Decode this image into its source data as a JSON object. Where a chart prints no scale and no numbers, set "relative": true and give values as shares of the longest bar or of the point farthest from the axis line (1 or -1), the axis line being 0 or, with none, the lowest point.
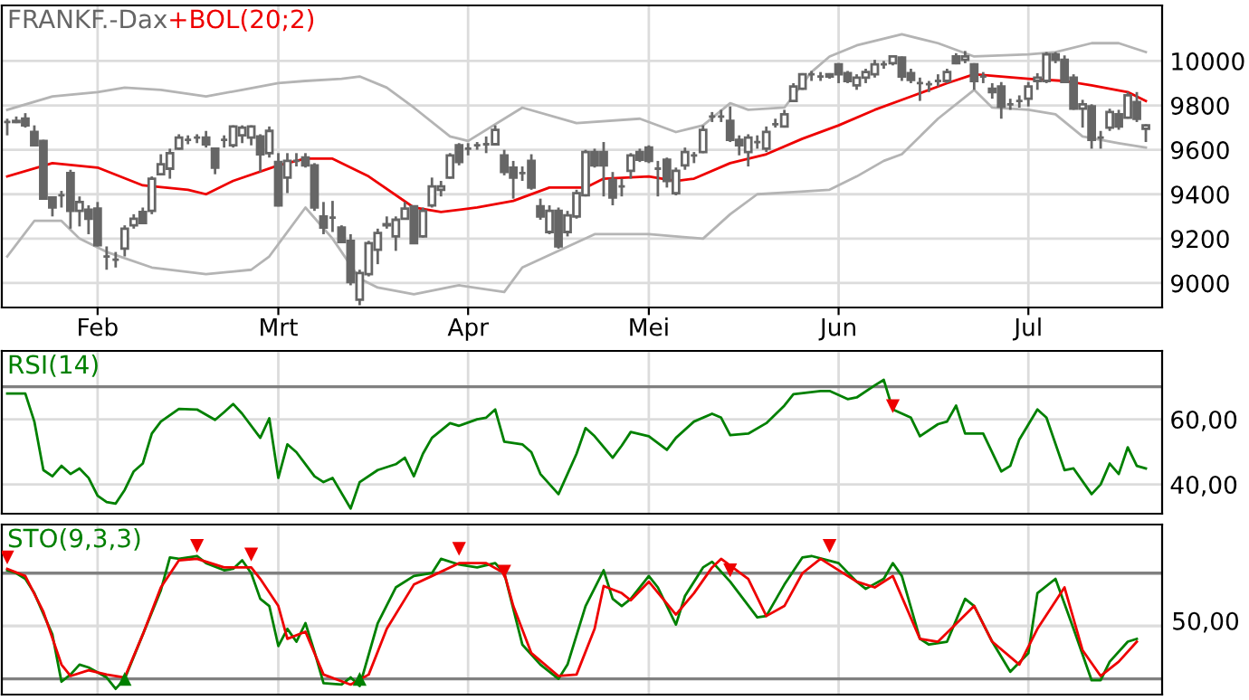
{
  "chart_data": [
    {
      "type": "candlestick",
      "title": "FRANKF.-Dax",
      "color": "#666666",
      "grid": true,
      "legend": false,
      "categories": [
        null,
        null,
        null,
        null,
        null,
        null,
        null,
        null,
        null,
        null,
        "Feb",
        null,
        null,
        null,
        null,
        null,
        null,
        null,
        null,
        null,
        null,
        null,
        null,
        null,
        null,
        null,
        null,
        null,
        null,
        null,
        "Mrt",
        null,
        null,
        null,
        null,
        null,
        null,
        null,
        null,
        null,
        null,
        null,
        null,
        null,
        null,
        null,
        null,
        null,
        null,
        null,
        null,
        "Apr",
        null,
        null,
        null,
        null,
        null,
        null,
        null,
        null,
        null,
        null,
        null,
        null,
        null,
        null,
        null,
        null,
        null,
        null,
        null,
        "Mei",
        null,
        null,
        null,
        null,
        null,
        null,
        null,
        null,
        null,
        null,
        null,
        null,
        null,
        null,
        null,
        null,
        null,
        null,
        null,
        null,
        "Jun",
        null,
        null,
        null,
        null,
        null,
        null,
        null,
        null,
        null,
        null,
        null,
        null,
        null,
        null,
        null,
        null,
        null,
        null,
        null,
        null,
        "Jul",
        null,
        null,
        null,
        null,
        null,
        null,
        null,
        null,
        null,
        null,
        null,
        null,
        null
      ],
      "ohlc": [
        [
          9725,
          9740,
          9665,
          9725
        ],
        [
          9730,
          9750,
          9720,
          9725
        ],
        [
          9740,
          9765,
          9700,
          9710
        ],
        [
          9680,
          9710,
          9615,
          9620
        ],
        [
          9640,
          9645,
          9375,
          9380
        ],
        [
          9385,
          9385,
          9300,
          9340
        ],
        [
          9395,
          9415,
          9340,
          9395
        ],
        [
          9495,
          9510,
          9245,
          9325
        ],
        [
          9325,
          9390,
          9255,
          9365
        ],
        [
          9330,
          9350,
          9220,
          9290
        ],
        [
          9335,
          9365,
          9165,
          9170
        ],
        [
          9120,
          9165,
          9060,
          9120
        ],
        [
          9105,
          9140,
          9070,
          9105
        ],
        [
          9155,
          9260,
          9120,
          9245
        ],
        [
          9260,
          9310,
          9245,
          9290
        ],
        [
          9320,
          9340,
          9265,
          9270
        ],
        [
          9325,
          9480,
          9310,
          9470
        ],
        [
          9490,
          9580,
          9485,
          9535
        ],
        [
          9515,
          9605,
          9470,
          9585
        ],
        [
          9605,
          9670,
          9600,
          9655
        ],
        [
          9645,
          9665,
          9625,
          9645
        ],
        [
          9655,
          9670,
          9630,
          9655
        ],
        [
          9655,
          9685,
          9610,
          9625
        ],
        [
          9605,
          9610,
          9490,
          9520
        ],
        [
          9645,
          9665,
          9610,
          9645
        ],
        [
          9620,
          9710,
          9610,
          9705
        ],
        [
          9665,
          9710,
          9630,
          9700
        ],
        [
          9655,
          9710,
          9620,
          9705
        ],
        [
          9660,
          9670,
          9500,
          9580
        ],
        [
          9585,
          9705,
          9565,
          9685
        ],
        [
          9545,
          9585,
          9345,
          9350
        ],
        [
          9475,
          9585,
          9405,
          9550
        ],
        [
          9550,
          9585,
          9525,
          9550
        ],
        [
          9565,
          9585,
          9520,
          9530
        ],
        [
          9530,
          9540,
          9325,
          9340
        ],
        [
          9300,
          9365,
          9220,
          9250
        ],
        [
          9295,
          9370,
          9230,
          9295
        ],
        [
          9250,
          9260,
          9180,
          9185
        ],
        [
          9190,
          9220,
          8990,
          9005
        ],
        [
          8925,
          9060,
          8900,
          9045
        ],
        [
          9040,
          9190,
          9030,
          9180
        ],
        [
          9150,
          9245,
          9085,
          9225
        ],
        [
          9260,
          9300,
          9245,
          9265
        ],
        [
          9210,
          9300,
          9145,
          9285
        ],
        [
          9290,
          9365,
          9285,
          9335
        ],
        [
          9345,
          9350,
          9175,
          9180
        ],
        [
          9210,
          9340,
          9205,
          9325
        ],
        [
          9350,
          9475,
          9340,
          9435
        ],
        [
          9420,
          9460,
          9390,
          9435
        ],
        [
          9475,
          9585,
          9470,
          9575
        ],
        [
          9620,
          9630,
          9530,
          9545
        ],
        [
          9605,
          9630,
          9575,
          9605
        ],
        [
          9620,
          9635,
          9600,
          9620
        ],
        [
          9625,
          9660,
          9585,
          9625
        ],
        [
          9625,
          9710,
          9620,
          9690
        ],
        [
          9575,
          9600,
          9485,
          9500
        ],
        [
          9520,
          9550,
          9380,
          9475
        ],
        [
          9495,
          9525,
          9460,
          9495
        ],
        [
          9550,
          9580,
          9420,
          9430
        ],
        [
          9345,
          9380,
          9285,
          9300
        ],
        [
          9230,
          9350,
          9220,
          9325
        ],
        [
          9325,
          9340,
          9155,
          9165
        ],
        [
          9230,
          9325,
          9210,
          9305
        ],
        [
          9300,
          9420,
          9290,
          9405
        ],
        [
          9395,
          9600,
          9390,
          9590
        ],
        [
          9590,
          9605,
          9520,
          9530
        ],
        [
          9590,
          9635,
          9390,
          9530
        ],
        [
          9465,
          9500,
          9350,
          9385
        ],
        [
          9435,
          9470,
          9390,
          9435
        ],
        [
          9505,
          9585,
          9470,
          9575
        ],
        [
          9590,
          9605,
          9545,
          9555
        ],
        [
          9610,
          9620,
          9540,
          9550
        ],
        [
          9515,
          9550,
          9390,
          9515
        ],
        [
          9555,
          9565,
          9430,
          9460
        ],
        [
          9405,
          9520,
          9395,
          9505
        ],
        [
          9530,
          9610,
          9510,
          9590
        ],
        [
          9575,
          9590,
          9540,
          9575
        ],
        [
          9590,
          9710,
          9585,
          9690
        ],
        [
          9750,
          9770,
          9725,
          9750
        ],
        [
          9750,
          9780,
          9725,
          9750
        ],
        [
          9730,
          9795,
          9635,
          9645
        ],
        [
          9645,
          9665,
          9575,
          9620
        ],
        [
          9590,
          9670,
          9525,
          9655
        ],
        [
          9635,
          9665,
          9605,
          9635
        ],
        [
          9605,
          9705,
          9590,
          9680
        ],
        [
          9715,
          9740,
          9700,
          9715
        ],
        [
          9705,
          9780,
          9700,
          9760
        ],
        [
          9820,
          9900,
          9815,
          9885
        ],
        [
          9875,
          9945,
          9870,
          9940
        ],
        [
          9940,
          9955,
          9910,
          9940
        ],
        [
          9930,
          9950,
          9910,
          9930
        ],
        [
          9930,
          9945,
          9920,
          9940
        ],
        [
          9985,
          9990,
          9900,
          9940
        ],
        [
          9945,
          9955,
          9900,
          9910
        ],
        [
          9890,
          9940,
          9870,
          9925
        ],
        [
          9925,
          9965,
          9900,
          9950
        ],
        [
          9940,
          10005,
          9925,
          9985
        ],
        [
          9985,
          10000,
          9965,
          9985
        ],
        [
          9990,
          10025,
          9980,
          10020
        ],
        [
          10015,
          10020,
          9910,
          9930
        ],
        [
          9945,
          9965,
          9900,
          9915
        ],
        [
          9900,
          9925,
          9820,
          9900
        ],
        [
          9895,
          9910,
          9860,
          9895
        ],
        [
          9910,
          9940,
          9885,
          9910
        ],
        [
          9910,
          9965,
          9900,
          9950
        ],
        [
          10020,
          10035,
          9985,
          9990
        ],
        [
          10005,
          10045,
          9990,
          10020
        ],
        [
          9985,
          9990,
          9870,
          9910
        ],
        [
          9930,
          9950,
          9900,
          9930
        ],
        [
          9875,
          9900,
          9830,
          9860
        ],
        [
          9885,
          9905,
          9740,
          9795
        ],
        [
          9805,
          9830,
          9780,
          9805
        ],
        [
          9820,
          9845,
          9790,
          9820
        ],
        [
          9830,
          9905,
          9795,
          9885
        ],
        [
          9910,
          9945,
          9870,
          9925
        ],
        [
          9910,
          10040,
          9900,
          10030
        ],
        [
          10030,
          10040,
          9990,
          10005
        ],
        [
          10005,
          10025,
          9900,
          9905
        ],
        [
          9925,
          9940,
          9780,
          9785
        ],
        [
          9785,
          9825,
          9700,
          9805
        ],
        [
          9795,
          9805,
          9605,
          9645
        ],
        [
          9655,
          9685,
          9605,
          9655
        ],
        [
          9700,
          9785,
          9685,
          9770
        ],
        [
          9760,
          9780,
          9690,
          9705
        ],
        [
          9745,
          9860,
          9740,
          9845
        ],
        [
          9815,
          9860,
          9725,
          9740
        ],
        [
          9695,
          9715,
          9635,
          9710
        ]
      ],
      "series": [
        {
          "type": "line",
          "color": "#b4b4b4",
          "values": [
            9780,
            null,
            null,
            null,
            null,
            9840,
            null,
            null,
            null,
            null,
            9860,
            null,
            null,
            9880,
            null,
            null,
            null,
            9870,
            null,
            null,
            null,
            null,
            9840,
            null,
            null,
            null,
            9870,
            null,
            null,
            null,
            9900,
            null,
            null,
            9910,
            null,
            null,
            null,
            9920,
            null,
            9930,
            null,
            null,
            9880,
            null,
            null,
            9790,
            null,
            null,
            null,
            9660,
            null,
            9640,
            null,
            null,
            null,
            null,
            null,
            9790,
            null,
            null,
            null,
            null,
            null,
            9720,
            null,
            null,
            null,
            null,
            null,
            null,
            9740,
            null,
            null,
            null,
            9680,
            null,
            null,
            9710,
            null,
            null,
            9810,
            null,
            9780,
            null,
            null,
            null,
            9790,
            null,
            null,
            9950,
            null,
            10020,
            null,
            null,
            10070,
            null,
            null,
            null,
            null,
            10120,
            null,
            null,
            null,
            10080,
            null,
            null,
            null,
            10020,
            null,
            null,
            null,
            null,
            null,
            10030,
            null,
            null,
            10040,
            null,
            null,
            null,
            10080,
            null,
            null,
            10080,
            null,
            null,
            10040
          ]
        },
        {
          "type": "line",
          "name": "+BOL(20;2)",
          "color": "#ee0000",
          "values": [
            9480,
            null,
            null,
            null,
            null,
            9540,
            null,
            null,
            null,
            null,
            9520,
            null,
            null,
            null,
            null,
            9440,
            null,
            null,
            null,
            null,
            9420,
            null,
            9400,
            null,
            null,
            9460,
            null,
            null,
            null,
            null,
            9530,
            null,
            null,
            9560,
            null,
            null,
            9560,
            null,
            null,
            null,
            9480,
            null,
            null,
            null,
            null,
            9340,
            null,
            null,
            9320,
            null,
            null,
            null,
            9340,
            null,
            null,
            null,
            9370,
            null,
            null,
            null,
            9430,
            null,
            null,
            null,
            9430,
            null,
            9470,
            null,
            null,
            null,
            null,
            9480,
            null,
            null,
            9460,
            null,
            9470,
            null,
            null,
            null,
            9540,
            null,
            null,
            null,
            9580,
            null,
            null,
            null,
            9650,
            null,
            null,
            null,
            9710,
            null,
            null,
            null,
            9780,
            null,
            null,
            null,
            9840,
            null,
            null,
            null,
            9900,
            null,
            null,
            9940,
            null,
            null,
            9930,
            null,
            null,
            9920,
            null,
            null,
            null,
            9910,
            null,
            null,
            9890,
            null,
            null,
            null,
            9860,
            null,
            9820
          ]
        },
        {
          "type": "line",
          "color": "#b4b4b4",
          "values": [
            9120,
            null,
            null,
            9280,
            null,
            null,
            9280,
            null,
            9200,
            null,
            null,
            9140,
            null,
            null,
            null,
            null,
            9070,
            null,
            null,
            null,
            null,
            null,
            9040,
            null,
            null,
            null,
            null,
            9060,
            null,
            9120,
            null,
            null,
            null,
            9340,
            null,
            null,
            9200,
            null,
            null,
            9020,
            null,
            8980,
            null,
            null,
            null,
            8950,
            null,
            null,
            null,
            null,
            8990,
            null,
            null,
            null,
            null,
            8960,
            null,
            9070,
            null,
            null,
            null,
            null,
            null,
            null,
            null,
            9220,
            null,
            null,
            null,
            null,
            null,
            9220,
            null,
            null,
            null,
            null,
            null,
            9200,
            null,
            null,
            9310,
            null,
            null,
            9400,
            null,
            null,
            null,
            9410,
            null,
            null,
            null,
            9420,
            null,
            null,
            9480,
            null,
            null,
            9550,
            null,
            9580,
            null,
            null,
            null,
            9740,
            null,
            null,
            null,
            9870,
            null,
            9790,
            null,
            null,
            null,
            9780,
            null,
            null,
            9760,
            null,
            null,
            9660,
            null,
            null,
            null,
            9630,
            null,
            null,
            9610
          ]
        }
      ],
      "ylim": [
        8890,
        10250
      ],
      "yticks": [
        9000,
        9200,
        9400,
        9600,
        9800,
        10000
      ]
    },
    {
      "type": "line",
      "grid": true,
      "legend": false,
      "tick_labels": "y",
      "categories": [
        null,
        null,
        null,
        null,
        null,
        null,
        null,
        null,
        null,
        null,
        null,
        null,
        null,
        null,
        null,
        null,
        null,
        null,
        null,
        null,
        null,
        null,
        null,
        null,
        null,
        null,
        null,
        null,
        null,
        null,
        null,
        null,
        null,
        null,
        null,
        null,
        null,
        null,
        null,
        null,
        null,
        null,
        null,
        null,
        null,
        null,
        null,
        null,
        null,
        null,
        null,
        null,
        null,
        null,
        null,
        null,
        null,
        null,
        null,
        null,
        null,
        null,
        null,
        null,
        null,
        null,
        null,
        null,
        null,
        null,
        null,
        null,
        null,
        null,
        null,
        null,
        null,
        null,
        null,
        null,
        null,
        null,
        null,
        null,
        null,
        null,
        null,
        null,
        null,
        null,
        null,
        null,
        null,
        null,
        null,
        null,
        null,
        null,
        null,
        null,
        null,
        null,
        null,
        null,
        null,
        null,
        null,
        null,
        null,
        null,
        null,
        null,
        null,
        null,
        null,
        null,
        null,
        null,
        null,
        null,
        null,
        null,
        null,
        null,
        null,
        null,
        null
      ],
      "series": [
        {
          "name": "RSI(14)",
          "color": "#008000",
          "values": [
            67.9,
            null,
            67.9,
            59.3,
            44.4,
            42.5,
            45.7,
            43.2,
            44.9,
            42,
            36.5,
            34.6,
            34.1,
            38.3,
            44,
            46.4,
            55.6,
            59.3,
            null,
            63.2,
            null,
            63,
            null,
            59.8,
            62.2,
            64.7,
            61.7,
            null,
            54.3,
            60.3,
            42,
            52.3,
            49.9,
            null,
            42.5,
            40.7,
            42,
            null,
            32.6,
            40.7,
            null,
            44.4,
            null,
            46.2,
            48.2,
            42.5,
            49.4,
            54.3,
            null,
            58.8,
            58,
            null,
            60,
            60.5,
            63,
            53.1,
            null,
            52.3,
            49.9,
            43.2,
            null,
            37,
            null,
            49.4,
            57.3,
            54.8,
            null,
            48.2,
            51.9,
            56.1,
            null,
            54.8,
            null,
            50.6,
            54.3,
            null,
            59.3,
            null,
            61.7,
            60.5,
            55.1,
            null,
            55.6,
            null,
            58.8,
            null,
            64.2,
            67.7,
            null,
            null,
            68.7,
            68.7,
            null,
            66.2,
            66.7,
            null,
            70.4,
            72.1,
            63,
            null,
            60.5,
            54.8,
            null,
            58.5,
            59.3,
            64.2,
            55.6,
            null,
            55.6,
            null,
            44,
            45.7,
            53.8,
            null,
            63,
            60.5,
            null,
            44.4,
            44.9,
            null,
            37,
            40,
            46.4,
            43.2,
            51.4,
            45.7,
            44.9
          ]
        },
        {
          "type": "scatter",
          "color": "#ee0000",
          "marker": "triangle_down",
          "values": [
            null,
            null,
            null,
            null,
            null,
            null,
            null,
            null,
            null,
            null,
            null,
            null,
            null,
            null,
            null,
            null,
            null,
            null,
            null,
            null,
            null,
            null,
            null,
            null,
            null,
            null,
            null,
            null,
            null,
            null,
            null,
            null,
            null,
            null,
            null,
            null,
            null,
            null,
            null,
            null,
            null,
            null,
            null,
            null,
            null,
            null,
            null,
            null,
            null,
            null,
            null,
            null,
            null,
            null,
            null,
            null,
            null,
            null,
            null,
            null,
            null,
            null,
            null,
            null,
            null,
            null,
            null,
            null,
            null,
            null,
            null,
            null,
            null,
            null,
            null,
            null,
            null,
            null,
            null,
            null,
            null,
            null,
            null,
            null,
            null,
            null,
            null,
            null,
            null,
            null,
            null,
            null,
            null,
            null,
            null,
            null,
            null,
            null,
            64,
            null,
            null,
            null,
            null,
            null,
            null,
            null,
            null,
            null,
            null,
            null,
            null,
            null,
            null,
            null,
            null,
            null,
            null,
            null,
            null,
            null,
            null,
            null,
            null,
            null,
            null,
            null,
            null
          ]
        }
      ],
      "ref_lines": [
        {
          "axis": "y",
          "value": 70,
          "color": "#808080"
        }
      ],
      "ylim": [
        31,
        81
      ],
      "yticks": [
        {
          "value": 40,
          "label": "40,00"
        },
        {
          "value": 60,
          "label": "60,00"
        }
      ]
    },
    {
      "type": "line",
      "relative": true,
      "grid": "x",
      "legend": false,
      "tick_labels": "y",
      "categories": [
        null,
        null,
        null,
        null,
        null,
        null,
        null,
        null,
        null,
        null,
        null,
        null,
        null,
        null,
        null,
        null,
        null,
        null,
        null,
        null,
        null,
        null,
        null,
        null,
        null,
        null,
        null,
        null,
        null,
        null,
        null,
        null,
        null,
        null,
        null,
        null,
        null,
        null,
        null,
        null,
        null,
        null,
        null,
        null,
        null,
        null,
        null,
        null,
        null,
        null,
        null,
        null,
        null,
        null,
        null,
        null,
        null,
        null,
        null,
        null,
        null,
        null,
        null,
        null,
        null,
        null,
        null,
        null,
        null,
        null,
        null,
        null,
        null,
        null,
        null,
        null,
        null,
        null,
        null,
        null,
        null,
        null,
        null,
        null,
        null,
        null,
        null,
        null,
        null,
        null,
        null,
        null,
        null,
        null,
        null,
        null,
        null,
        null,
        null,
        null,
        null,
        null,
        null,
        null,
        null,
        null,
        null,
        null,
        null,
        null,
        null,
        null,
        null,
        null,
        null,
        null,
        null,
        null,
        null,
        null,
        null,
        null,
        null,
        null,
        null,
        null,
        null
      ],
      "series": [
        {
          "name": "STO(9,3,3)",
          "color": "#008000",
          "values": [
            0.83,
            0.81,
            0.77,
            0.67,
            null,
            0.38,
            0.05,
            0.1,
            0.17,
            0.15,
            null,
            0.08,
            0,
            0.07,
            null,
            0.38,
            null,
            0.69,
            0.92,
            0.91,
            null,
            0.93,
            0.88,
            null,
            0.83,
            0.84,
            0.9,
            0.81,
            0.63,
            0.58,
            0.3,
            0.42,
            0.33,
            0.46,
            0.26,
            0.04,
            null,
            0.03,
            0.08,
            0.02,
            null,
            0.46,
            null,
            0.71,
            null,
            0.79,
            null,
            0.81,
            0.91,
            null,
            0.87,
            null,
            0.85,
            null,
            0.88,
            0.81,
            null,
            0.31,
            null,
            0.17,
            null,
            0.07,
            0.17,
            null,
            0.58,
            null,
            0.83,
            0.63,
            0.58,
            0.63,
            null,
            0.79,
            0.71,
            null,
            0.45,
            0.65,
            null,
            0.85,
            0.89,
            null,
            0.75,
            null,
            null,
            0.5,
            0.51,
            null,
            0.73,
            null,
            0.92,
            0.93,
            null,
            null,
            0.88,
            null,
            0.75,
            0.7,
            null,
            0.77,
            0.88,
            0.79,
            null,
            0.35,
            0.31,
            null,
            0.33,
            null,
            0.63,
            0.58,
            null,
            0.33,
            null,
            0.12,
            null,
            0.25,
            0.67,
            null,
            0.77,
            null,
            0.42,
            null,
            0.06,
            0.06,
            0.19,
            null,
            0.33,
            0.35,
            null
          ]
        },
        {
          "color": "#ee0000",
          "values": [
            0.84,
            null,
            0.79,
            null,
            0.54,
            null,
            0.17,
            0.09,
            null,
            0.13,
            null,
            0.1,
            null,
            0.08,
            null,
            0.38,
            null,
            0.71,
            null,
            0.9,
            null,
            0.91,
            null,
            null,
            0.85,
            null,
            null,
            0.85,
            0.77,
            null,
            0.58,
            0.35,
            null,
            0.4,
            null,
            0.1,
            null,
            null,
            0.03,
            null,
            0.1,
            null,
            0.42,
            null,
            null,
            0.73,
            null,
            0.79,
            null,
            null,
            0.88,
            null,
            null,
            0.88,
            null,
            0.81,
            0.58,
            null,
            0.25,
            null,
            null,
            0.09,
            null,
            0.1,
            null,
            0.42,
            0.72,
            null,
            0.67,
            0.62,
            null,
            0.75,
            null,
            null,
            0.52,
            null,
            0.67,
            null,
            0.85,
            0.91,
            null,
            null,
            0.77,
            null,
            0.51,
            null,
            0.58,
            null,
            0.81,
            null,
            0.91,
            null,
            null,
            null,
            0.75,
            null,
            0.71,
            null,
            0.79,
            null,
            null,
            0.35,
            null,
            0.33,
            null,
            null,
            null,
            0.58,
            null,
            0.33,
            null,
            null,
            0.17,
            null,
            0.42,
            null,
            null,
            0.71,
            null,
            0.27,
            null,
            0.09,
            null,
            0.19,
            null,
            0.33,
            null
          ]
        },
        {
          "type": "scatter",
          "color": "#ee0000",
          "marker": "triangle_down",
          "values": [
            0.92,
            null,
            null,
            null,
            null,
            null,
            null,
            null,
            null,
            null,
            null,
            null,
            null,
            null,
            null,
            null,
            null,
            null,
            null,
            null,
            null,
            1.0,
            null,
            null,
            null,
            null,
            null,
            0.94,
            null,
            null,
            null,
            null,
            null,
            null,
            null,
            null,
            null,
            null,
            null,
            null,
            null,
            null,
            null,
            null,
            null,
            null,
            null,
            null,
            null,
            null,
            0.98,
            null,
            null,
            null,
            null,
            0.82,
            null,
            null,
            null,
            null,
            null,
            null,
            null,
            null,
            null,
            null,
            null,
            null,
            null,
            null,
            null,
            null,
            null,
            null,
            null,
            null,
            null,
            null,
            null,
            null,
            0.83,
            null,
            null,
            null,
            null,
            null,
            null,
            null,
            null,
            null,
            null,
            1.0,
            null,
            null,
            null,
            null,
            null,
            null,
            null,
            null,
            null,
            null,
            null,
            null,
            null,
            null,
            null,
            null,
            null,
            null,
            null,
            null,
            null,
            null,
            null,
            null,
            null,
            null,
            null,
            null,
            null,
            null,
            null,
            null,
            null,
            null,
            null
          ]
        },
        {
          "type": "scatter",
          "color": "#008000",
          "marker": "triangle",
          "values": [
            null,
            null,
            null,
            null,
            null,
            null,
            null,
            null,
            null,
            null,
            null,
            null,
            null,
            0.07,
            null,
            null,
            null,
            null,
            null,
            null,
            null,
            null,
            null,
            null,
            null,
            null,
            null,
            null,
            null,
            null,
            null,
            null,
            null,
            null,
            null,
            null,
            null,
            null,
            null,
            0.07,
            null,
            null,
            null,
            null,
            null,
            null,
            null,
            null,
            null,
            null,
            null,
            null,
            null,
            null,
            null,
            null,
            null,
            null,
            null,
            null,
            null,
            null,
            null,
            null,
            null,
            null,
            null,
            null,
            null,
            null,
            null,
            null,
            null,
            null,
            null,
            null,
            null,
            null,
            null,
            null,
            null,
            null,
            null,
            null,
            null,
            null,
            null,
            null,
            null,
            null,
            null,
            null,
            null,
            null,
            null,
            null,
            null,
            null,
            null,
            null,
            null,
            null,
            null,
            null,
            null,
            null,
            null,
            null,
            null,
            null,
            null,
            null,
            null,
            null,
            null,
            null,
            null,
            null,
            null,
            null,
            null,
            null,
            null,
            null,
            null,
            null,
            null
          ]
        }
      ],
      "ref_lines": [
        {
          "axis": "y",
          "value": 0.81,
          "color": "#808080"
        },
        {
          "axis": "y",
          "value": 0.44,
          "color": "#dcdcdc"
        },
        {
          "axis": "y",
          "value": 0.07,
          "color": "#808080"
        }
      ],
      "annotations": [
        "50,00"
      ]
    }
  ]
}
